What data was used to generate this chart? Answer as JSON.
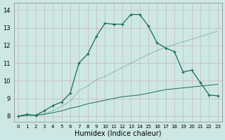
{
  "xlabel": "Humidex (Indice chaleur)",
  "bg_color": "#cde8e4",
  "grid_color": "#b8b0b0",
  "line_color": "#1a6b5a",
  "xlim": [
    -0.5,
    23.5
  ],
  "ylim": [
    7.7,
    14.4
  ],
  "xticks": [
    0,
    1,
    2,
    3,
    4,
    5,
    6,
    7,
    8,
    9,
    10,
    11,
    12,
    13,
    14,
    15,
    16,
    17,
    18,
    19,
    20,
    21,
    22,
    23
  ],
  "yticks": [
    8,
    9,
    10,
    11,
    12,
    13,
    14
  ],
  "line_peak_x": [
    0,
    1,
    2,
    3,
    4,
    5,
    6,
    7,
    8,
    9,
    10,
    11,
    12,
    13,
    14,
    15,
    16,
    17,
    18,
    19,
    20,
    21,
    22,
    23
  ],
  "line_peak_y": [
    8.0,
    8.1,
    8.05,
    8.3,
    8.6,
    8.8,
    9.3,
    11.0,
    11.5,
    12.5,
    13.25,
    13.2,
    13.2,
    13.75,
    13.75,
    13.1,
    12.15,
    11.85,
    11.65,
    10.5,
    10.6,
    9.9,
    9.2,
    9.15
  ],
  "line_flat_x": [
    0,
    1,
    2,
    3,
    4,
    5,
    6,
    7,
    8,
    9,
    10,
    11,
    12,
    13,
    14,
    15,
    16,
    17,
    18,
    19,
    20,
    21,
    22,
    23
  ],
  "line_flat_y": [
    8.0,
    8.05,
    8.05,
    8.1,
    8.2,
    8.3,
    8.45,
    8.55,
    8.7,
    8.8,
    8.9,
    9.0,
    9.1,
    9.15,
    9.2,
    9.3,
    9.4,
    9.5,
    9.55,
    9.6,
    9.65,
    9.7,
    9.75,
    9.8
  ],
  "line_dotted_x": [
    0,
    1,
    2,
    3,
    4,
    5,
    6,
    7,
    8,
    9,
    10,
    11,
    12,
    13,
    14,
    15,
    16,
    17,
    18,
    19,
    20,
    21,
    22,
    23
  ],
  "line_dotted_y": [
    8.0,
    8.05,
    8.05,
    8.15,
    8.3,
    8.55,
    8.85,
    9.45,
    9.7,
    10.05,
    10.25,
    10.5,
    10.75,
    11.0,
    11.25,
    11.5,
    11.7,
    11.9,
    12.05,
    12.2,
    12.35,
    12.5,
    12.65,
    12.8
  ]
}
